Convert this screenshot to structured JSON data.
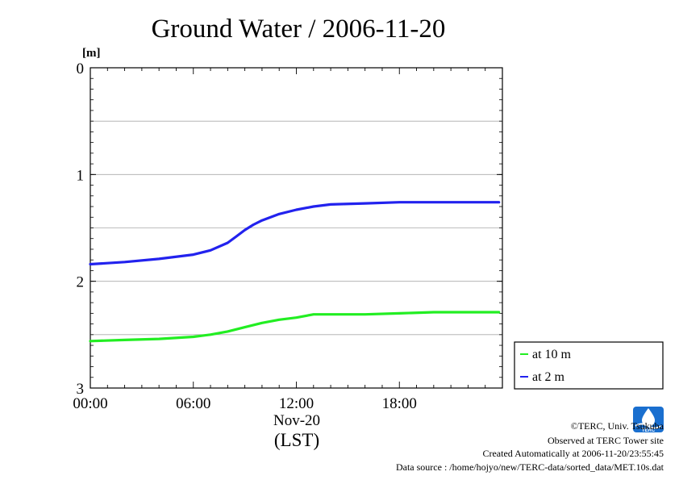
{
  "chart_data": {
    "type": "line",
    "title": "Ground Water / 2006-11-20",
    "y_unit_label": "[m]",
    "y_inverted": true,
    "ylim": [
      0,
      3
    ],
    "y_ticks": [
      0,
      1,
      2,
      3
    ],
    "y_grid": [
      0.5,
      1,
      1.5,
      2,
      2.5
    ],
    "x_range_hours": [
      0,
      24
    ],
    "x_ticks": [
      {
        "hour": 0,
        "label": "00:00"
      },
      {
        "hour": 6,
        "label": "06:00"
      },
      {
        "hour": 12,
        "label": "12:00"
      },
      {
        "hour": 18,
        "label": "18:00"
      }
    ],
    "x_date_label": "Nov-20",
    "x_axis_label": "(LST)",
    "legend_position": "right",
    "series": [
      {
        "name": "at 10 m",
        "color": "#22ee22",
        "x_hours": [
          0,
          2,
          4,
          6,
          7,
          8,
          9,
          10,
          11,
          12,
          13,
          14,
          15,
          16,
          18,
          20,
          22,
          23.8
        ],
        "values": [
          2.56,
          2.55,
          2.54,
          2.52,
          2.5,
          2.47,
          2.43,
          2.39,
          2.36,
          2.34,
          2.31,
          2.31,
          2.31,
          2.31,
          2.3,
          2.29,
          2.29,
          2.29
        ]
      },
      {
        "name": "at 2 m",
        "color": "#2222ee",
        "x_hours": [
          0,
          2,
          4,
          6,
          7,
          8,
          8.5,
          9,
          9.5,
          10,
          11,
          12,
          13,
          14,
          16,
          18,
          20,
          22,
          23.8
        ],
        "values": [
          1.84,
          1.82,
          1.79,
          1.75,
          1.71,
          1.64,
          1.58,
          1.52,
          1.47,
          1.43,
          1.37,
          1.33,
          1.3,
          1.28,
          1.27,
          1.26,
          1.26,
          1.26,
          1.26
        ]
      }
    ]
  },
  "footer": {
    "credit": "©TERC, Univ. Tsukuba",
    "observed": "Observed at TERC Tower site",
    "created": "Created Automatically at 2006-11-20/23:55:45",
    "source": "Data source : /home/hojyo/new/TERC-data/sorted_data/MET.10s.dat",
    "logo_text": "TERC"
  }
}
